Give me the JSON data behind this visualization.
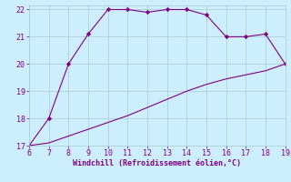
{
  "upper_x": [
    6,
    7,
    8,
    9,
    10,
    11,
    12,
    13,
    14,
    15,
    16,
    17,
    18,
    19
  ],
  "upper_y": [
    17,
    18,
    20,
    21.1,
    22,
    22,
    21.9,
    22,
    22,
    21.8,
    21,
    21,
    21.1,
    20
  ],
  "lower_x": [
    6,
    7,
    8,
    9,
    10,
    11,
    12,
    13,
    14,
    15,
    16,
    17,
    18,
    19
  ],
  "lower_y": [
    17,
    17.1,
    17.35,
    17.6,
    17.85,
    18.1,
    18.4,
    18.7,
    19.0,
    19.25,
    19.45,
    19.6,
    19.75,
    20
  ],
  "line_color": "#800080",
  "marker": "D",
  "marker_size": 2.2,
  "bg_color": "#cceeff",
  "grid_color": "#aacccc",
  "xlabel": "Windchill (Refroidissement éolien,°C)",
  "xlabel_color": "#800080",
  "tick_color": "#800080",
  "xlim": [
    6,
    19
  ],
  "ylim": [
    17,
    22
  ],
  "xticks": [
    6,
    7,
    8,
    9,
    10,
    11,
    12,
    13,
    14,
    15,
    16,
    17,
    18,
    19
  ],
  "yticks": [
    17,
    18,
    19,
    20,
    21,
    22
  ],
  "tick_fontsize": 6,
  "xlabel_fontsize": 6
}
